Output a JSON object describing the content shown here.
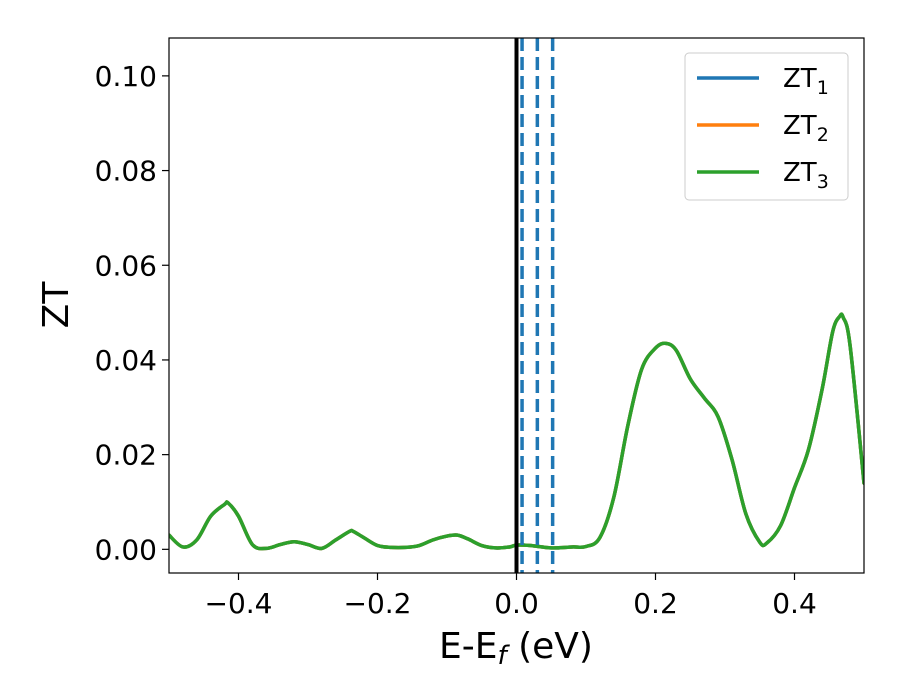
{
  "chart_data": {
    "type": "line",
    "xlabel": {
      "main": "E-E",
      "sub": "f",
      "suffix": " (eV)"
    },
    "ylabel": "ZT",
    "xlim": [
      -0.5,
      0.5
    ],
    "ylim": [
      -0.005,
      0.108
    ],
    "xticks": [
      -0.4,
      -0.2,
      0.0,
      0.2,
      0.4
    ],
    "xtick_labels": [
      "−0.4",
      "−0.2",
      "0.0",
      "0.2",
      "0.4"
    ],
    "yticks": [
      0.0,
      0.02,
      0.04,
      0.06,
      0.08,
      0.1
    ],
    "ytick_labels": [
      "0.00",
      "0.02",
      "0.04",
      "0.06",
      "0.08",
      "0.10"
    ],
    "grid": false,
    "legend_position": "top-right",
    "vlines": [
      {
        "x": 0.0,
        "color": "#000000",
        "style": "solid"
      },
      {
        "x": 0.008,
        "color": "#1f77b4",
        "style": "dashed"
      },
      {
        "x": 0.03,
        "color": "#1f77b4",
        "style": "dashed"
      },
      {
        "x": 0.052,
        "color": "#1f77b4",
        "style": "dashed"
      }
    ],
    "x": [
      -0.5,
      -0.48,
      -0.46,
      -0.44,
      -0.42,
      -0.415,
      -0.4,
      -0.38,
      -0.36,
      -0.34,
      -0.32,
      -0.3,
      -0.28,
      -0.26,
      -0.24,
      -0.235,
      -0.22,
      -0.2,
      -0.18,
      -0.16,
      -0.14,
      -0.12,
      -0.1,
      -0.085,
      -0.07,
      -0.05,
      -0.03,
      -0.01,
      0.0,
      0.02,
      0.05,
      0.08,
      0.1,
      0.12,
      0.14,
      0.16,
      0.18,
      0.2,
      0.215,
      0.23,
      0.25,
      0.27,
      0.29,
      0.31,
      0.33,
      0.35,
      0.36,
      0.38,
      0.4,
      0.42,
      0.44,
      0.455,
      0.465,
      0.47,
      0.48,
      0.5
    ],
    "series": [
      {
        "name": {
          "main": "ZT",
          "sub": "1"
        },
        "color": "#1f77b4",
        "values": [
          0.003,
          0.0005,
          0.002,
          0.007,
          0.0095,
          0.0098,
          0.007,
          0.001,
          0.0002,
          0.001,
          0.0016,
          0.001,
          0.0002,
          0.002,
          0.0038,
          0.0038,
          0.0025,
          0.0008,
          0.0004,
          0.0004,
          0.0008,
          0.002,
          0.0028,
          0.003,
          0.0022,
          0.0008,
          0.0003,
          0.0005,
          0.0009,
          0.0008,
          0.0003,
          0.0005,
          0.0006,
          0.0025,
          0.011,
          0.026,
          0.038,
          0.0425,
          0.0435,
          0.042,
          0.036,
          0.032,
          0.028,
          0.019,
          0.0075,
          0.0015,
          0.0013,
          0.005,
          0.013,
          0.021,
          0.034,
          0.046,
          0.0492,
          0.049,
          0.043,
          0.014
        ]
      },
      {
        "name": {
          "main": "ZT",
          "sub": "2"
        },
        "color": "#ff7f0e",
        "values": [
          0.003,
          0.0005,
          0.002,
          0.007,
          0.0095,
          0.0098,
          0.007,
          0.001,
          0.0002,
          0.001,
          0.0016,
          0.001,
          0.0002,
          0.002,
          0.0038,
          0.0038,
          0.0025,
          0.0008,
          0.0004,
          0.0004,
          0.0008,
          0.002,
          0.0028,
          0.003,
          0.0022,
          0.0008,
          0.0003,
          0.0005,
          0.0009,
          0.0008,
          0.0003,
          0.0005,
          0.0006,
          0.0025,
          0.011,
          0.026,
          0.038,
          0.0425,
          0.0435,
          0.042,
          0.036,
          0.032,
          0.028,
          0.019,
          0.0075,
          0.0015,
          0.0013,
          0.005,
          0.013,
          0.021,
          0.034,
          0.046,
          0.0492,
          0.049,
          0.043,
          0.014
        ]
      },
      {
        "name": {
          "main": "ZT",
          "sub": "3"
        },
        "color": "#2ca02c",
        "values": [
          0.003,
          0.0005,
          0.002,
          0.007,
          0.0095,
          0.0098,
          0.007,
          0.001,
          0.0002,
          0.001,
          0.0016,
          0.001,
          0.0002,
          0.002,
          0.0038,
          0.0038,
          0.0025,
          0.0008,
          0.0004,
          0.0004,
          0.0008,
          0.002,
          0.0028,
          0.003,
          0.0022,
          0.0008,
          0.0003,
          0.0005,
          0.0009,
          0.0008,
          0.0003,
          0.0005,
          0.0006,
          0.0025,
          0.011,
          0.026,
          0.038,
          0.0425,
          0.0435,
          0.042,
          0.036,
          0.032,
          0.028,
          0.019,
          0.0075,
          0.0015,
          0.0013,
          0.005,
          0.013,
          0.021,
          0.034,
          0.046,
          0.0492,
          0.049,
          0.043,
          0.014
        ]
      }
    ]
  }
}
